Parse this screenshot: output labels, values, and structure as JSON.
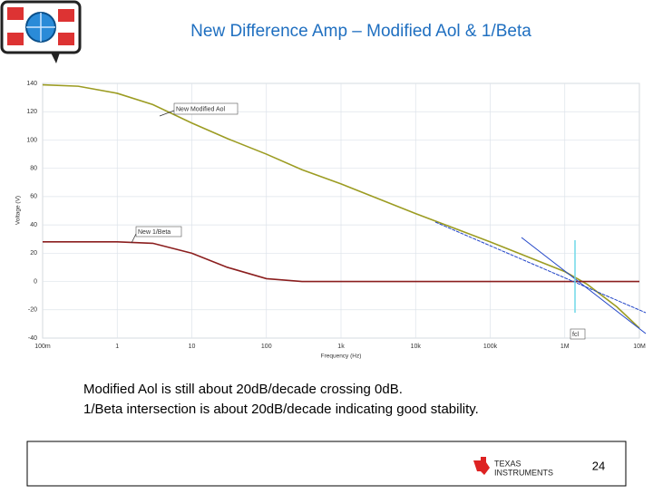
{
  "chart_data": {
    "type": "line",
    "title": "New Difference Amp – Modified Aol & 1/Beta",
    "x_label": "Frequency (Hz)",
    "y_label": "Voltage (V)",
    "x_log": true,
    "grid": true,
    "x": [
      0.1,
      0.3,
      1,
      3,
      10,
      30,
      100,
      300,
      1000,
      10000,
      100000,
      1000000,
      2000000,
      5000000,
      10000000
    ],
    "series": [
      {
        "name": "New Modified Aol",
        "color": "#9c9c22",
        "values": [
          139,
          138,
          133,
          125,
          112,
          101,
          90,
          79,
          69,
          48,
          28,
          7,
          -2,
          -18,
          -33
        ]
      },
      {
        "name": "New 1/Beta",
        "color": "#8b1e1e",
        "values": [
          28,
          28,
          28,
          27,
          20,
          10,
          2,
          0,
          0,
          0,
          0,
          0,
          0,
          0,
          0
        ]
      }
    ],
    "xlim": [
      0.1,
      10000000
    ],
    "xticks": [
      {
        "value": 0.1,
        "label": "100m"
      },
      1,
      10,
      100,
      {
        "value": 1000,
        "label": "1k"
      },
      {
        "value": 10000,
        "label": "10k"
      },
      {
        "value": 100000,
        "label": "100k"
      },
      {
        "value": 1000000,
        "label": "1M"
      },
      {
        "value": 10000000,
        "label": "10M"
      }
    ],
    "ylim": [
      -40,
      140
    ],
    "yticks": [
      140,
      120,
      100,
      80,
      60,
      40,
      20,
      0,
      -20,
      -40
    ],
    "annotations": [
      "New Modified Aol",
      "New 1/Beta",
      "fcl"
    ],
    "notes": [
      "Modified Aol is still about 20dB/decade crossing 0dB.",
      "1/Beta intersection is about 20dB/decade indicating good stability."
    ],
    "footer": {
      "logo_text_1": "TEXAS",
      "logo_text_2": "INSTRUMENTS",
      "page": "24"
    }
  }
}
